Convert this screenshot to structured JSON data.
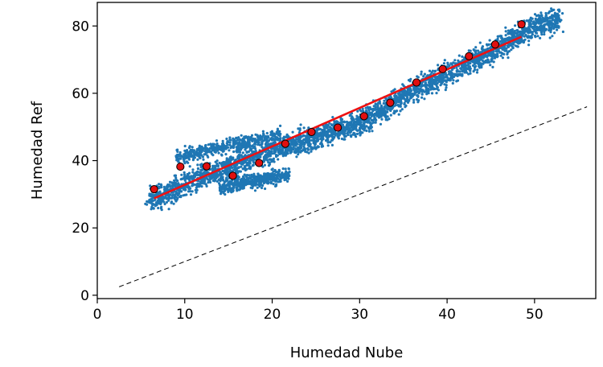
{
  "chart_data": {
    "type": "scatter",
    "xlabel": "Humedad Nube",
    "ylabel": "Humedad Ref",
    "xlim": [
      0,
      57
    ],
    "ylim": [
      -1,
      87
    ],
    "xticks": [
      0,
      10,
      20,
      30,
      40,
      50
    ],
    "yticks": [
      0,
      20,
      40,
      60,
      80
    ],
    "grid": false,
    "colors": {
      "cloud": "#1f77b4",
      "binned_points": "#e01010",
      "fit_line": "#ee1111",
      "reference_line": "#000000"
    },
    "series": [
      {
        "type": "scatter",
        "role": "cloud-trend",
        "x": [
          6,
          10,
          15,
          20,
          25,
          30,
          35,
          40,
          45,
          50,
          53
        ],
        "y": [
          28,
          33,
          38,
          43,
          47,
          51,
          59,
          66,
          72,
          80,
          82
        ]
      },
      {
        "type": "scatter",
        "role": "binned-means",
        "x": [
          6.5,
          9.5,
          12.5,
          15.5,
          18.5,
          21.5,
          24.5,
          27.5,
          30.5,
          33.5,
          36.5,
          39.5,
          42.5,
          45.5,
          48.5
        ],
        "y": [
          31.5,
          38.2,
          38.3,
          35.5,
          39.3,
          45.0,
          48.5,
          49.8,
          53.2,
          57.2,
          63.2,
          67.2,
          71.0,
          74.5,
          80.5
        ]
      },
      {
        "type": "line",
        "role": "linear-fit",
        "x": [
          6.5,
          48.5
        ],
        "y": [
          28.8,
          76.8
        ]
      },
      {
        "type": "line",
        "role": "reference",
        "dash": "dashed",
        "x": [
          2.5,
          56
        ],
        "y": [
          2.5,
          56
        ]
      }
    ]
  }
}
